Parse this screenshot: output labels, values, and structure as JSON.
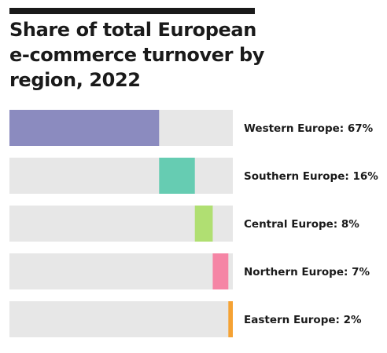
{
  "chart_data": {
    "type": "bar",
    "title": "Share of total European e-commerce turnover by region, 2022",
    "xlabel": "",
    "ylabel": "",
    "xlim": [
      0,
      100
    ],
    "grid": false,
    "legend": "none",
    "stacked_offset": true,
    "series": [
      {
        "label": "Western Europe: 67%",
        "value": 67,
        "color": "#8b8bbf"
      },
      {
        "label": "Southern Europe: 16%",
        "value": 16,
        "color": "#66ccb2"
      },
      {
        "label": "Central Europe: 8%",
        "value": 8,
        "color": "#b0df72"
      },
      {
        "label": "Northern Europe: 7%",
        "value": 7,
        "color": "#f585a5"
      },
      {
        "label": "Eastern Europe: 2%",
        "value": 2,
        "color": "#f5a234"
      }
    ],
    "track_color": "#e7e7e7"
  }
}
